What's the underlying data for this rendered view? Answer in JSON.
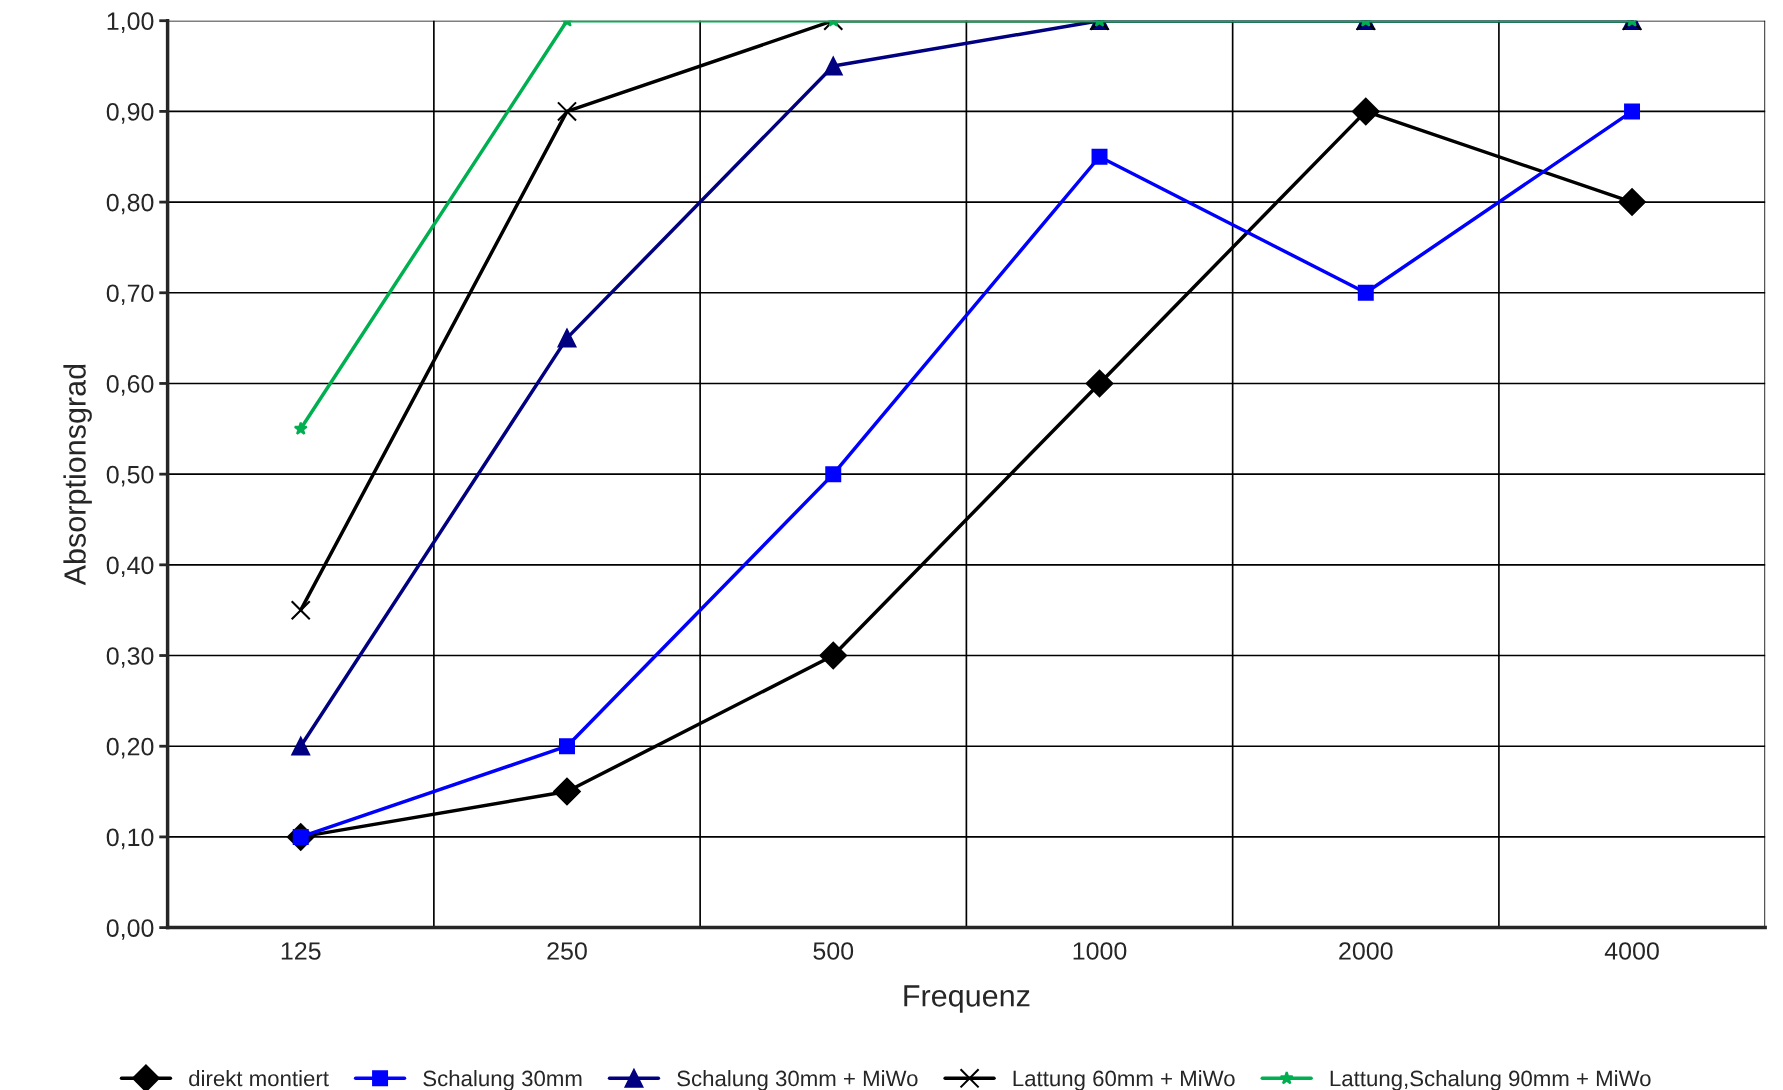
{
  "chart_data": {
    "type": "line",
    "xlabel": "Frequenz",
    "ylabel": "Absorptionsgrad",
    "categories": [
      "125",
      "250",
      "500",
      "1000",
      "2000",
      "4000"
    ],
    "series": [
      {
        "name": "direkt montiert",
        "color": "#000000",
        "marker": "diamond",
        "values": [
          0.1,
          0.15,
          0.3,
          0.6,
          0.9,
          0.8
        ]
      },
      {
        "name": "Schalung 30mm",
        "color": "#0000ff",
        "marker": "square",
        "values": [
          0.1,
          0.2,
          0.5,
          0.85,
          0.7,
          0.9
        ]
      },
      {
        "name": "Schalung 30mm + MiWo",
        "color": "#000080",
        "marker": "triangle",
        "values": [
          0.2,
          0.65,
          0.95,
          1.0,
          1.0,
          1.0
        ]
      },
      {
        "name": "Lattung 60mm + MiWo",
        "color": "#000000",
        "marker": "cross",
        "values": [
          0.35,
          0.9,
          1.0,
          1.0,
          1.0,
          1.0
        ]
      },
      {
        "name": "Lattung,Schalung 90mm + MiWo",
        "color": "#00b050",
        "marker": "star",
        "values": [
          0.55,
          1.0,
          1.0,
          1.0,
          1.0,
          1.0
        ]
      }
    ],
    "ylim": [
      0,
      1
    ],
    "yticks": [
      {
        "value": 0,
        "label": "0,00"
      },
      {
        "value": 0.1,
        "label": "0,10"
      },
      {
        "value": 0.2,
        "label": "0,20"
      },
      {
        "value": 0.3,
        "label": "0,30"
      },
      {
        "value": 0.4,
        "label": "0,40"
      },
      {
        "value": 0.5,
        "label": "0,50"
      },
      {
        "value": 0.6,
        "label": "0,60"
      },
      {
        "value": 0.7,
        "label": "0,70"
      },
      {
        "value": 0.8,
        "label": "0,80"
      },
      {
        "value": 0.9,
        "label": "0,90"
      },
      {
        "value": 1,
        "label": "1,00"
      }
    ],
    "grid": true,
    "legend": "bottom",
    "line_style": "solid"
  }
}
